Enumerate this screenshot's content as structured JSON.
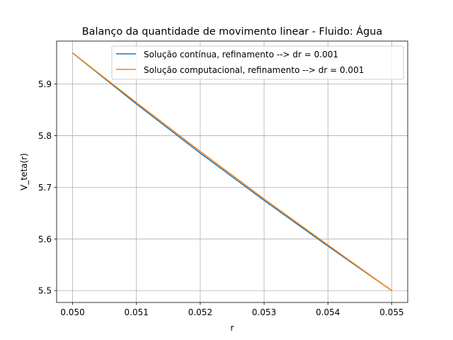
{
  "chart_data": {
    "type": "line",
    "title": "Balanço da quantidade de movimento linear - Fluido: Água",
    "xlabel": "r",
    "ylabel": "V_teta(r)",
    "xlim": [
      0.04975,
      0.05525
    ],
    "ylim": [
      5.477,
      5.983
    ],
    "grid": true,
    "legend_position": "top-right",
    "x_ticks": [
      {
        "value": 0.05,
        "label": "0.050"
      },
      {
        "value": 0.051,
        "label": "0.051"
      },
      {
        "value": 0.052,
        "label": "0.052"
      },
      {
        "value": 0.053,
        "label": "0.053"
      },
      {
        "value": 0.054,
        "label": "0.054"
      },
      {
        "value": 0.055,
        "label": "0.055"
      }
    ],
    "y_ticks": [
      {
        "value": 5.5,
        "label": "5.5"
      },
      {
        "value": 5.6,
        "label": "5.6"
      },
      {
        "value": 5.7,
        "label": "5.7"
      },
      {
        "value": 5.8,
        "label": "5.8"
      },
      {
        "value": 5.9,
        "label": "5.9"
      }
    ],
    "series": [
      {
        "name": "Solução contínua, refinamento --> dr = 0.001",
        "color": "#1f77b4",
        "x": [
          0.05,
          0.051,
          0.052,
          0.053,
          0.054,
          0.055
        ],
        "y": [
          5.96,
          5.8612,
          5.7662,
          5.6746,
          5.5861,
          5.5
        ]
      },
      {
        "name": "Solução computacional, refinamento --> dr = 0.001",
        "color": "#ff7f0e",
        "x": [
          0.05,
          0.051,
          0.052,
          0.053,
          0.054,
          0.055
        ],
        "y": [
          5.96,
          5.8638,
          5.7694,
          5.6775,
          5.5882,
          5.5
        ]
      }
    ]
  }
}
